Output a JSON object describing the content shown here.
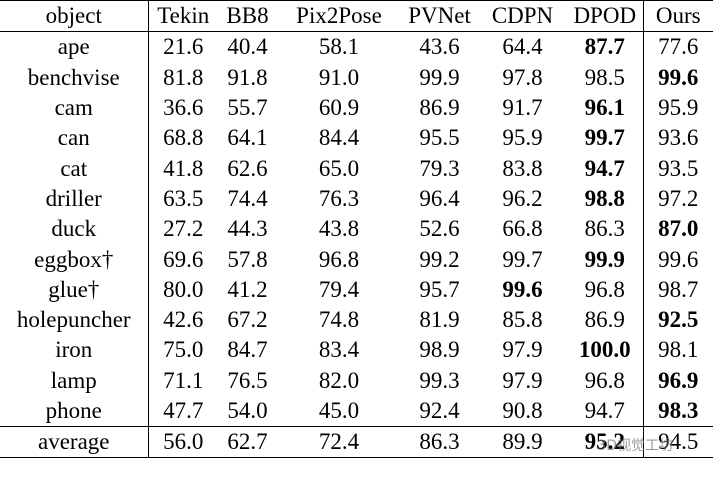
{
  "table": {
    "header": [
      "object",
      "Tekin",
      "BB8",
      "Pix2Pose",
      "PVNet",
      "CDPN",
      "DPOD",
      "Ours"
    ],
    "rows": [
      [
        "ape",
        "21.6",
        "40.4",
        "58.1",
        "43.6",
        "64.4",
        "87.7",
        "77.6"
      ],
      [
        "benchvise",
        "81.8",
        "91.8",
        "91.0",
        "99.9",
        "97.8",
        "98.5",
        "99.6"
      ],
      [
        "cam",
        "36.6",
        "55.7",
        "60.9",
        "86.9",
        "91.7",
        "96.1",
        "95.9"
      ],
      [
        "can",
        "68.8",
        "64.1",
        "84.4",
        "95.5",
        "95.9",
        "99.7",
        "93.6"
      ],
      [
        "cat",
        "41.8",
        "62.6",
        "65.0",
        "79.3",
        "83.8",
        "94.7",
        "93.5"
      ],
      [
        "driller",
        "63.5",
        "74.4",
        "76.3",
        "96.4",
        "96.2",
        "98.8",
        "97.2"
      ],
      [
        "duck",
        "27.2",
        "44.3",
        "43.8",
        "52.6",
        "66.8",
        "86.3",
        "87.0"
      ],
      [
        "eggbox†",
        "69.6",
        "57.8",
        "96.8",
        "99.2",
        "99.7",
        "99.9",
        "99.6"
      ],
      [
        "glue†",
        "80.0",
        "41.2",
        "79.4",
        "95.7",
        "99.6",
        "96.8",
        "98.7"
      ],
      [
        "holepuncher",
        "42.6",
        "67.2",
        "74.8",
        "81.9",
        "85.8",
        "86.9",
        "92.5"
      ],
      [
        "iron",
        "75.0",
        "84.7",
        "83.4",
        "98.9",
        "97.9",
        "100.0",
        "98.1"
      ],
      [
        "lamp",
        "71.1",
        "76.5",
        "82.0",
        "99.3",
        "97.9",
        "96.8",
        "96.9"
      ],
      [
        "phone",
        "47.7",
        "54.0",
        "45.0",
        "92.4",
        "90.8",
        "94.7",
        "98.3"
      ],
      [
        "average",
        "56.0",
        "62.7",
        "72.4",
        "86.3",
        "89.9",
        "95.2",
        "94.5"
      ]
    ],
    "bold": [
      [
        0,
        6
      ],
      [
        1,
        7
      ],
      [
        2,
        6
      ],
      [
        3,
        6
      ],
      [
        4,
        6
      ],
      [
        5,
        6
      ],
      [
        6,
        7
      ],
      [
        7,
        6
      ],
      [
        8,
        5
      ],
      [
        9,
        7
      ],
      [
        10,
        6
      ],
      [
        11,
        7
      ],
      [
        12,
        7
      ],
      [
        13,
        6
      ]
    ],
    "watermark": "3D视觉工坊"
  }
}
